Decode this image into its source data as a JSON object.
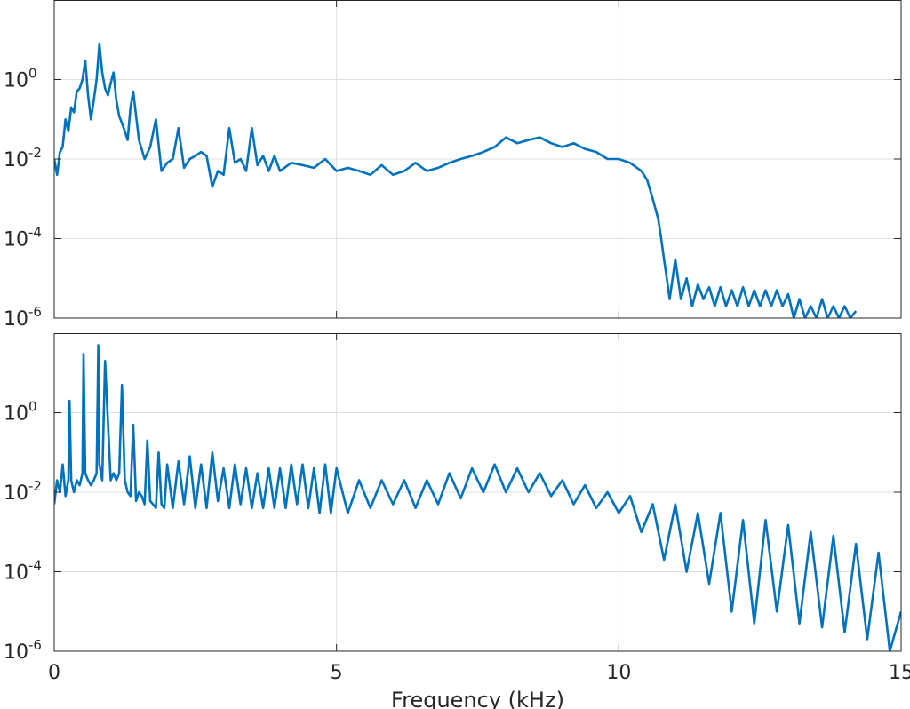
{
  "chart_data": [
    {
      "type": "line",
      "panel": "top",
      "xlim": [
        0,
        15
      ],
      "ylim": [
        1e-06,
        100
      ],
      "yscale": "log",
      "grid": true,
      "xticks": [
        0,
        5,
        10,
        15
      ],
      "xtick_labels": [],
      "yticks": [
        1e-06,
        0.0001,
        0.01,
        1
      ],
      "ytick_labels": [
        {
          "base": "10",
          "exp": "-6"
        },
        {
          "base": "10",
          "exp": "-4"
        },
        {
          "base": "10",
          "exp": "-2"
        },
        {
          "base": "10",
          "exp": "0"
        }
      ],
      "color": "#0072BD",
      "series": [
        {
          "x": [
            0.0,
            0.05,
            0.1,
            0.15,
            0.2,
            0.25,
            0.3,
            0.35,
            0.4,
            0.45,
            0.5,
            0.55,
            0.6,
            0.65,
            0.7,
            0.75,
            0.8,
            0.85,
            0.9,
            0.95,
            1.0,
            1.05,
            1.1,
            1.15,
            1.2,
            1.25,
            1.3,
            1.35,
            1.4,
            1.5,
            1.6,
            1.7,
            1.8,
            1.9,
            2.0,
            2.1,
            2.2,
            2.3,
            2.4,
            2.5,
            2.6,
            2.7,
            2.8,
            2.9,
            3.0,
            3.1,
            3.2,
            3.3,
            3.4,
            3.5,
            3.6,
            3.7,
            3.8,
            3.9,
            4.0,
            4.2,
            4.4,
            4.6,
            4.8,
            5.0,
            5.2,
            5.4,
            5.6,
            5.8,
            6.0,
            6.2,
            6.4,
            6.6,
            6.8,
            7.0,
            7.2,
            7.4,
            7.6,
            7.8,
            8.0,
            8.2,
            8.4,
            8.6,
            8.8,
            9.0,
            9.2,
            9.4,
            9.6,
            9.8,
            10.0,
            10.2,
            10.4,
            10.5,
            10.6,
            10.7,
            10.75,
            10.8,
            10.85,
            10.9,
            11.0,
            11.1,
            11.2,
            11.3,
            11.4,
            11.5,
            11.6,
            11.7,
            11.8,
            11.9,
            12.0,
            12.1,
            12.2,
            12.3,
            12.4,
            12.5,
            12.6,
            12.7,
            12.8,
            12.9,
            13.0,
            13.1,
            13.2,
            13.3,
            13.4,
            13.5,
            13.6,
            13.7,
            13.8,
            13.9,
            14.0,
            14.1,
            14.2
          ],
          "y": [
            0.01,
            0.004,
            0.015,
            0.02,
            0.1,
            0.05,
            0.2,
            0.15,
            0.5,
            0.6,
            1.0,
            3.0,
            0.4,
            0.1,
            0.3,
            1.0,
            8.0,
            1.5,
            0.6,
            0.4,
            0.8,
            1.5,
            0.3,
            0.12,
            0.08,
            0.05,
            0.03,
            0.2,
            0.5,
            0.03,
            0.01,
            0.02,
            0.1,
            0.005,
            0.008,
            0.01,
            0.06,
            0.006,
            0.01,
            0.012,
            0.015,
            0.012,
            0.002,
            0.005,
            0.004,
            0.06,
            0.008,
            0.01,
            0.005,
            0.06,
            0.007,
            0.012,
            0.005,
            0.012,
            0.005,
            0.008,
            0.007,
            0.006,
            0.01,
            0.005,
            0.006,
            0.005,
            0.004,
            0.007,
            0.004,
            0.005,
            0.008,
            0.005,
            0.006,
            0.008,
            0.01,
            0.012,
            0.015,
            0.02,
            0.035,
            0.025,
            0.03,
            0.035,
            0.025,
            0.02,
            0.025,
            0.018,
            0.015,
            0.01,
            0.01,
            0.008,
            0.005,
            0.003,
            0.001,
            0.0003,
            0.0001,
            3e-05,
            1e-05,
            3e-06,
            3e-05,
            3e-06,
            1e-05,
            2e-06,
            7e-06,
            3e-06,
            6e-06,
            2e-06,
            6e-06,
            2e-06,
            5e-06,
            2e-06,
            6e-06,
            2e-06,
            5e-06,
            2e-06,
            5e-06,
            2e-06,
            5e-06,
            2e-06,
            4e-06,
            1e-06,
            3e-06,
            1e-06,
            2e-06,
            1e-06,
            3e-06,
            1e-06,
            2e-06,
            1e-06,
            2e-06,
            1e-06,
            1.5e-06
          ]
        }
      ]
    },
    {
      "type": "line",
      "panel": "bottom",
      "xlim": [
        0,
        15
      ],
      "ylim": [
        1e-06,
        100
      ],
      "yscale": "log",
      "grid": true,
      "xlabel": "Frequency (kHz)",
      "xticks": [
        0,
        5,
        10,
        15
      ],
      "xtick_labels": [
        "0",
        "5",
        "10",
        "15"
      ],
      "yticks": [
        1e-06,
        0.0001,
        0.01,
        1
      ],
      "ytick_labels": [
        {
          "base": "10",
          "exp": "-6"
        },
        {
          "base": "10",
          "exp": "-4"
        },
        {
          "base": "10",
          "exp": "-2"
        },
        {
          "base": "10",
          "exp": "0"
        }
      ],
      "color": "#0072BD",
      "series": [
        {
          "x": [
            0.0,
            0.05,
            0.1,
            0.15,
            0.2,
            0.25,
            0.27,
            0.3,
            0.35,
            0.4,
            0.45,
            0.5,
            0.52,
            0.55,
            0.6,
            0.65,
            0.7,
            0.75,
            0.78,
            0.8,
            0.85,
            0.9,
            1.0,
            1.05,
            1.1,
            1.15,
            1.2,
            1.25,
            1.3,
            1.35,
            1.4,
            1.45,
            1.5,
            1.55,
            1.6,
            1.65,
            1.7,
            1.75,
            1.8,
            1.85,
            1.9,
            1.95,
            2.0,
            2.1,
            2.2,
            2.3,
            2.4,
            2.5,
            2.6,
            2.7,
            2.8,
            2.9,
            3.0,
            3.1,
            3.2,
            3.3,
            3.4,
            3.5,
            3.6,
            3.7,
            3.8,
            3.9,
            4.0,
            4.1,
            4.2,
            4.3,
            4.4,
            4.5,
            4.6,
            4.7,
            4.8,
            4.9,
            5.0,
            5.2,
            5.4,
            5.6,
            5.8,
            6.0,
            6.2,
            6.4,
            6.6,
            6.8,
            7.0,
            7.2,
            7.4,
            7.6,
            7.8,
            8.0,
            8.2,
            8.4,
            8.6,
            8.8,
            9.0,
            9.2,
            9.4,
            9.6,
            9.8,
            10.0,
            10.2,
            10.4,
            10.6,
            10.8,
            11.0,
            11.2,
            11.4,
            11.6,
            11.8,
            12.0,
            12.2,
            12.4,
            12.6,
            12.8,
            13.0,
            13.2,
            13.4,
            13.6,
            13.8,
            14.0,
            14.2,
            14.4,
            14.6,
            14.8,
            15.0
          ],
          "y": [
            0.005,
            0.02,
            0.01,
            0.05,
            0.008,
            0.02,
            2.0,
            0.02,
            0.01,
            0.02,
            0.015,
            0.03,
            30,
            0.03,
            0.02,
            0.015,
            0.02,
            0.03,
            50,
            0.05,
            0.02,
            20,
            0.02,
            0.03,
            0.02,
            0.03,
            5.0,
            0.02,
            0.01,
            0.008,
            0.5,
            0.006,
            0.01,
            0.008,
            0.005,
            0.2,
            0.006,
            0.005,
            0.004,
            0.1,
            0.005,
            0.004,
            0.05,
            0.004,
            0.06,
            0.005,
            0.08,
            0.004,
            0.05,
            0.004,
            0.1,
            0.006,
            0.04,
            0.004,
            0.05,
            0.005,
            0.04,
            0.004,
            0.03,
            0.004,
            0.04,
            0.004,
            0.04,
            0.004,
            0.05,
            0.005,
            0.05,
            0.004,
            0.04,
            0.003,
            0.05,
            0.003,
            0.04,
            0.003,
            0.02,
            0.004,
            0.02,
            0.005,
            0.02,
            0.004,
            0.02,
            0.005,
            0.03,
            0.007,
            0.04,
            0.01,
            0.05,
            0.01,
            0.04,
            0.01,
            0.03,
            0.008,
            0.02,
            0.005,
            0.015,
            0.004,
            0.01,
            0.003,
            0.008,
            0.001,
            0.005,
            0.0002,
            0.005,
            0.0001,
            0.003,
            5e-05,
            0.003,
            1e-05,
            0.002,
            5e-06,
            0.002,
            1e-05,
            0.0015,
            5e-06,
            0.001,
            4e-06,
            0.0008,
            3e-06,
            0.0005,
            2e-06,
            0.0003,
            1e-06,
            1e-05
          ]
        }
      ]
    }
  ]
}
